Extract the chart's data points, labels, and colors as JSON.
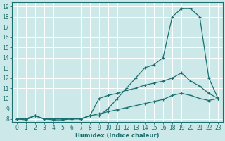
{
  "xlabel": "Humidex (Indice chaleur)",
  "bg_color": "#cce8e8",
  "grid_color": "#ffffff",
  "line_color": "#1a7070",
  "xlim_min": -0.5,
  "xlim_max": 23.5,
  "ylim_min": 7.7,
  "ylim_max": 19.4,
  "xticks": [
    0,
    1,
    2,
    3,
    4,
    5,
    6,
    7,
    8,
    9,
    10,
    11,
    12,
    13,
    14,
    15,
    16,
    18,
    19,
    20,
    21,
    22,
    23
  ],
  "yticks": [
    8,
    9,
    10,
    11,
    12,
    13,
    14,
    15,
    16,
    17,
    18,
    19
  ],
  "line1_x": [
    0,
    1,
    2,
    3,
    4,
    5,
    6,
    7,
    8,
    9,
    10,
    11,
    12,
    13,
    14,
    15,
    16,
    18,
    19,
    20,
    21,
    22,
    23
  ],
  "line1_y": [
    8,
    7.9,
    8.3,
    8.0,
    7.9,
    7.9,
    8.0,
    8.0,
    8.3,
    8.3,
    9.0,
    10.0,
    11.0,
    12.0,
    13.0,
    13.3,
    14.0,
    18.0,
    18.8,
    18.8,
    18.0,
    12.0,
    10.0
  ],
  "line2_x": [
    0,
    1,
    2,
    3,
    4,
    5,
    6,
    7,
    8,
    9,
    10,
    11,
    12,
    13,
    14,
    15,
    16,
    18,
    19,
    20,
    21,
    22,
    23
  ],
  "line2_y": [
    8,
    8,
    8.3,
    8,
    8,
    8,
    8,
    8,
    8.3,
    10.0,
    10.3,
    10.5,
    10.8,
    11.0,
    11.3,
    11.5,
    11.7,
    12.0,
    12.5,
    11.7,
    11.2,
    10.5,
    10.0
  ],
  "line3_x": [
    0,
    1,
    2,
    3,
    4,
    5,
    6,
    7,
    8,
    9,
    10,
    11,
    12,
    13,
    14,
    15,
    16,
    18,
    19,
    20,
    21,
    22,
    23
  ],
  "line3_y": [
    8,
    8,
    8.3,
    8,
    8,
    8,
    8,
    8,
    8.3,
    8.5,
    8.7,
    8.9,
    9.1,
    9.3,
    9.5,
    9.7,
    9.9,
    10.3,
    10.5,
    10.3,
    10.0,
    9.8,
    10.0
  ]
}
